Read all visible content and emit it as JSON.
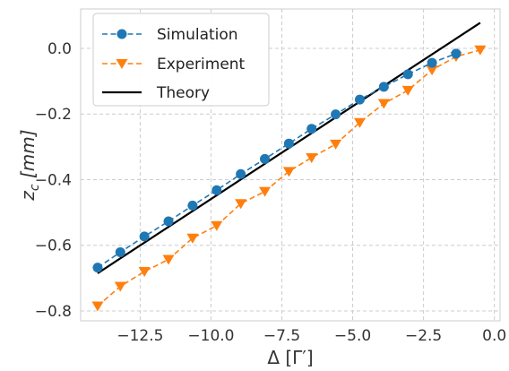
{
  "chart_data": {
    "type": "line",
    "title": "",
    "xlabel": "Δ [Γ′]",
    "ylabel_main": "z",
    "ylabel_sub": "c",
    "ylabel_unit": "[mm]",
    "xlim": [
      -14.6,
      0.2
    ],
    "ylim": [
      -0.83,
      0.12
    ],
    "xticks": [
      -12.5,
      -10.0,
      -7.5,
      -5.0,
      -2.5,
      0.0
    ],
    "xtick_labels": [
      "−12.5",
      "−10.0",
      "−7.5",
      "−5.0",
      "−2.5",
      "0.0"
    ],
    "yticks": [
      0.0,
      -0.2,
      -0.4,
      -0.6,
      -0.8
    ],
    "ytick_labels": [
      "0.0",
      "−0.2",
      "−0.4",
      "−0.6",
      "−0.8"
    ],
    "grid": true,
    "legend_position": "top-left",
    "series": [
      {
        "name": "Simulation",
        "style": "dashed",
        "marker": "circle",
        "color": "#1f77b4",
        "x": [
          -14.0,
          -13.2,
          -12.35,
          -11.5,
          -10.65,
          -9.8,
          -8.95,
          -8.1,
          -7.25,
          -6.45,
          -5.6,
          -4.75,
          -3.9,
          -3.05,
          -2.2,
          -1.35
        ],
        "y": [
          -0.668,
          -0.621,
          -0.573,
          -0.527,
          -0.479,
          -0.432,
          -0.383,
          -0.337,
          -0.29,
          -0.245,
          -0.201,
          -0.156,
          -0.117,
          -0.079,
          -0.044,
          -0.016
        ]
      },
      {
        "name": "Experiment",
        "style": "dashed",
        "marker": "triangle-down",
        "color": "#ff7f0e",
        "x": [
          -14.0,
          -13.2,
          -12.35,
          -11.5,
          -10.65,
          -9.8,
          -8.95,
          -8.1,
          -7.25,
          -6.45,
          -5.6,
          -4.75,
          -3.9,
          -3.05,
          -2.2,
          -1.35,
          -0.5
        ],
        "y": [
          -0.785,
          -0.725,
          -0.68,
          -0.643,
          -0.578,
          -0.54,
          -0.473,
          -0.436,
          -0.375,
          -0.333,
          -0.292,
          -0.226,
          -0.168,
          -0.128,
          -0.066,
          -0.025,
          -0.005
        ]
      },
      {
        "name": "Theory",
        "style": "solid",
        "marker": "none",
        "color": "#000000",
        "x": [
          -14.0,
          -0.5
        ],
        "y": [
          -0.685,
          0.078
        ]
      }
    ]
  }
}
